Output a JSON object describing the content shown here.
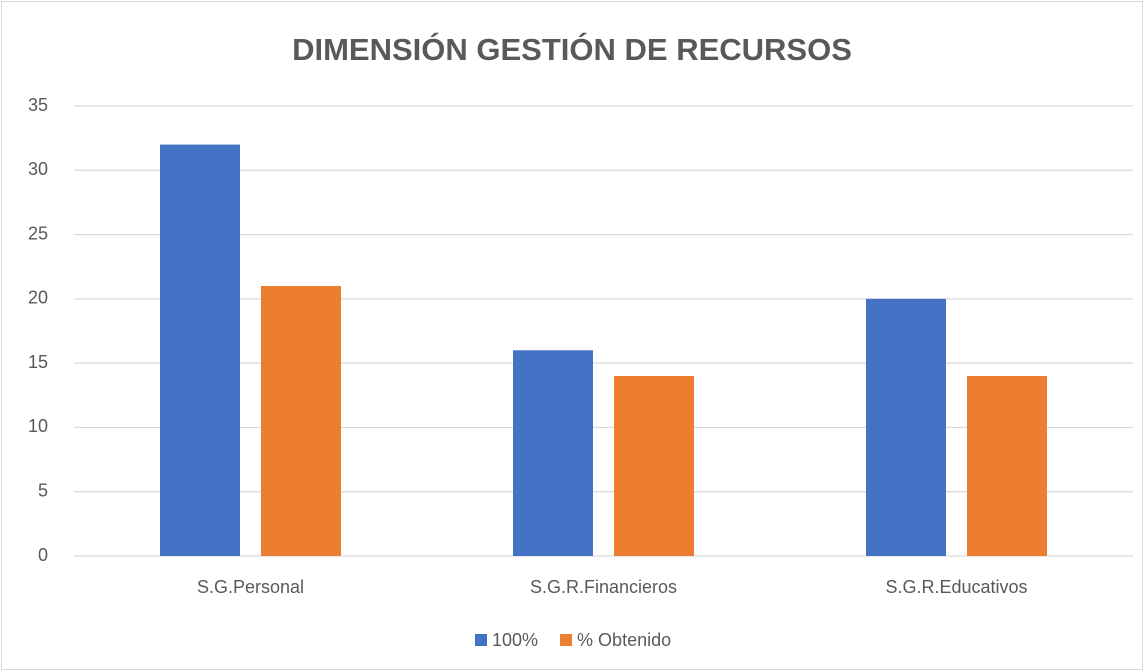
{
  "chart_data": {
    "type": "bar",
    "title": "DIMENSIÓN GESTIÓN DE RECURSOS",
    "categories": [
      "S.G.Personal",
      "S.G.R.Financieros",
      "S.G.R.Educativos"
    ],
    "series": [
      {
        "name": "100%",
        "color": "#4472c4",
        "values": [
          32,
          16,
          20
        ]
      },
      {
        "name": "% Obtenido",
        "color": "#ed7d31",
        "values": [
          21,
          14,
          14
        ]
      }
    ],
    "ylim": [
      0,
      35
    ],
    "yticks": [
      0,
      5,
      10,
      15,
      20,
      25,
      30,
      35
    ],
    "grid": true,
    "legend": "bottom"
  }
}
